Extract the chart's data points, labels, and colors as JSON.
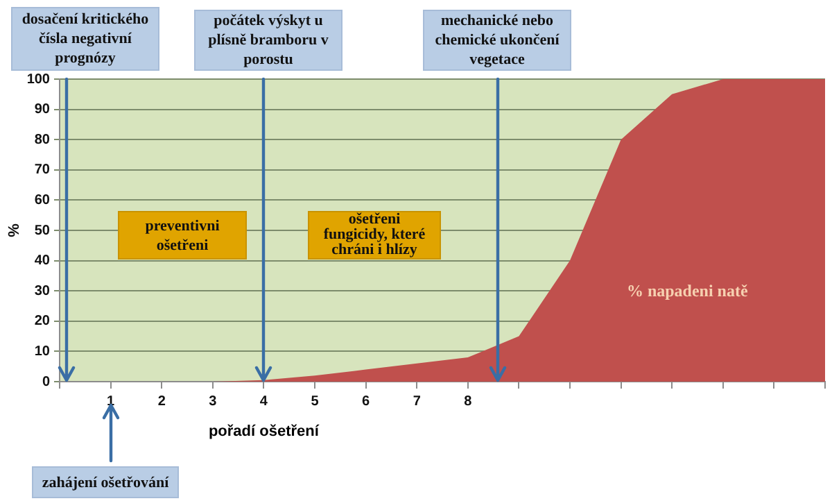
{
  "chart_data": {
    "type": "area",
    "ylabel": "%",
    "xlabel": "pořadí ošetření",
    "categories": [
      null,
      "1",
      "2",
      "3",
      "4",
      "5",
      "6",
      "7",
      "8",
      null,
      null,
      null,
      null,
      null,
      null,
      null
    ],
    "series": [
      {
        "name": "% napadeni natě",
        "color": "#c0504d",
        "values": [
          0,
          0,
          0,
          0,
          0.5,
          2,
          4,
          6,
          8,
          15,
          40,
          80,
          95,
          100,
          100,
          100
        ]
      }
    ],
    "ylim": [
      0,
      100
    ],
    "yticks": [
      0,
      10,
      20,
      30,
      40,
      50,
      60,
      70,
      80,
      90,
      100
    ],
    "grid": "y",
    "legend": false,
    "marker": "none",
    "annotations": [
      "dosačení kritického čísla negativní prognózy",
      "počátek výskyt u plísně bramboru v porostu",
      "mechanické nebo chemické ukončení vegetace",
      "zahájení ošetřování",
      "preventivni ošetřeni",
      "ošetřeni fungicidy, které chráni i hlízy"
    ]
  }
}
